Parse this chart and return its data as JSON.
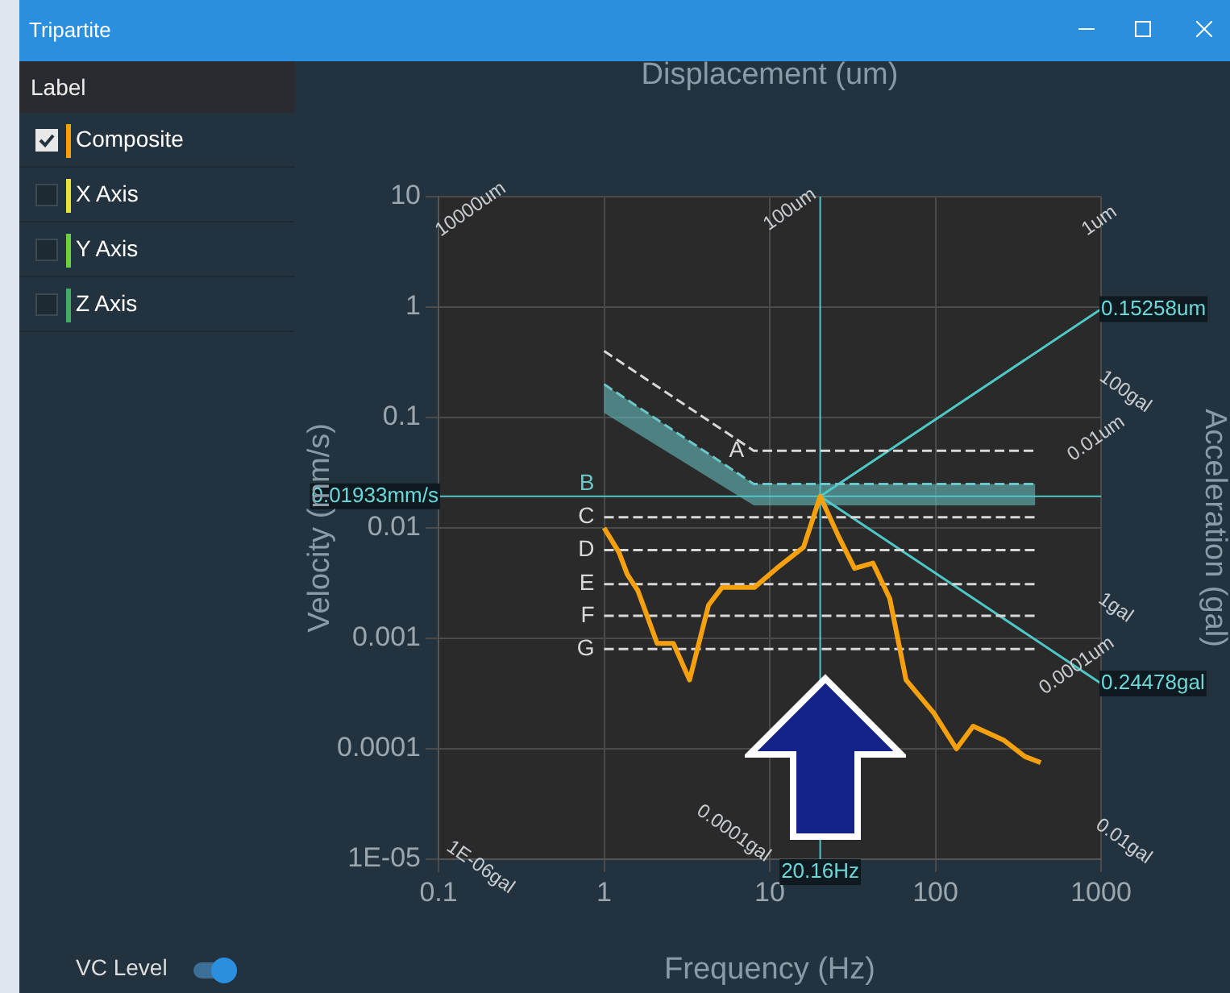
{
  "chart_data": {
    "type": "line",
    "title": "Tripartite",
    "legend_title": "Label",
    "xlabel": "Frequency (Hz)",
    "ylabel": "Velocity (mm/s)",
    "y2label": "Acceleration (gal)",
    "x2label": "Displacement (um)",
    "log": "xy",
    "grid": true,
    "legend": "left",
    "marker": "none",
    "line_style": "solid",
    "xlim": [
      0.1,
      1000
    ],
    "xticks": [
      0.1,
      1,
      10,
      100,
      1000
    ],
    "ylim": [
      1e-05,
      10
    ],
    "yticks": [
      10,
      1,
      0.1,
      0.01,
      0.001,
      0.0001,
      {
        "value": 1e-05,
        "label": "1E-05"
      }
    ],
    "x": [
      1,
      1.23,
      1.38,
      1.6,
      2.09,
      2.62,
      3.28,
      4.27,
      5.16,
      8.1,
      11,
      16,
      20.16,
      26,
      32.5,
      42,
      53,
      66.5,
      98,
      134,
      169,
      258,
      347,
      432
    ],
    "series": [
      {
        "name": "Composite",
        "color": "#f5a00f",
        "values": [
          0.01,
          0.006,
          0.0038,
          0.0027,
          0.0009,
          0.0009,
          0.00042,
          0.002,
          0.0029,
          0.0029,
          0.0043,
          0.0067,
          0.01933,
          0.0084,
          0.0043,
          0.0048,
          0.0023,
          0.00042,
          0.00021,
          0.0001,
          0.00016,
          0.00012,
          8.5e-05,
          7.5e-05
        ]
      },
      {
        "name": "X Axis",
        "color": "#e8e040",
        "values": [
          null,
          null,
          null,
          null,
          null,
          null,
          null,
          null,
          null,
          null,
          null,
          null,
          null,
          null,
          null,
          null,
          null,
          null,
          null,
          null,
          null,
          null,
          null,
          null
        ]
      },
      {
        "name": "Y Axis",
        "color": "#6ad040",
        "values": [
          null,
          null,
          null,
          null,
          null,
          null,
          null,
          null,
          null,
          null,
          null,
          null,
          null,
          null,
          null,
          null,
          null,
          null,
          null,
          null,
          null,
          null,
          null,
          null
        ]
      },
      {
        "name": "Z Axis",
        "color": "#3cb060",
        "values": [
          null,
          null,
          null,
          null,
          null,
          null,
          null,
          null,
          null,
          null,
          null,
          null,
          null,
          null,
          null,
          null,
          null,
          null,
          null,
          null,
          null,
          null,
          null,
          null
        ]
      },
      {
        "name": "A",
        "color": "#d8d8d8",
        "line_style": "dashed",
        "x": [
          1,
          8,
          400
        ],
        "values": [
          0.4,
          0.05,
          0.05
        ]
      },
      {
        "name": "B",
        "color": "#6cc8c8",
        "line_style": "dashed",
        "x": [
          1,
          8,
          400
        ],
        "values": [
          0.2,
          0.025,
          0.025
        ],
        "lower": [
          0.11,
          0.016,
          0.016
        ],
        "upper": [
          0.2,
          0.025,
          0.025
        ]
      },
      {
        "name": "C",
        "color": "#d8d8d8",
        "line_style": "dashed",
        "x": [
          1,
          400
        ],
        "values": [
          0.0125,
          0.0125
        ]
      },
      {
        "name": "D",
        "color": "#d8d8d8",
        "line_style": "dashed",
        "x": [
          1,
          400
        ],
        "values": [
          0.0063,
          0.0063
        ]
      },
      {
        "name": "E",
        "color": "#d8d8d8",
        "line_style": "dashed",
        "x": [
          1,
          400
        ],
        "values": [
          0.0031,
          0.0031
        ]
      },
      {
        "name": "F",
        "color": "#d8d8d8",
        "line_style": "dashed",
        "x": [
          1,
          400
        ],
        "values": [
          0.0016,
          0.0016
        ]
      },
      {
        "name": "G",
        "color": "#d8d8d8",
        "line_style": "dashed",
        "x": [
          1,
          400
        ],
        "values": [
          0.0008,
          0.0008
        ]
      },
      {
        "color": "#4fc8c8",
        "x": [
          20.16,
          1000
        ],
        "values": [
          0.01933,
          0.959
        ]
      },
      {
        "color": "#4fc8c8",
        "x": [
          20.16,
          1000
        ],
        "values": [
          0.01933,
          0.00039
        ]
      }
    ],
    "ref_lines": [
      {
        "axis": "x",
        "value": 20.16,
        "label": "20.16Hz",
        "color": "#4fc8c8"
      },
      {
        "axis": "y",
        "value": 0.01933,
        "label": "0.01933mm/s",
        "color": "#4fc8c8"
      }
    ],
    "annotations": [
      {
        "text": "0.15258um",
        "x": 1000,
        "y": 0.959
      },
      {
        "text": "0.24478gal",
        "x": 1000,
        "y": 0.00039
      },
      "10000um",
      "100um",
      "1um",
      "100gal",
      "0.01um",
      "1gal",
      "0.0001um",
      "0.01gal",
      "1E-06gal",
      "0.0001gal",
      "VC Level"
    ]
  }
}
